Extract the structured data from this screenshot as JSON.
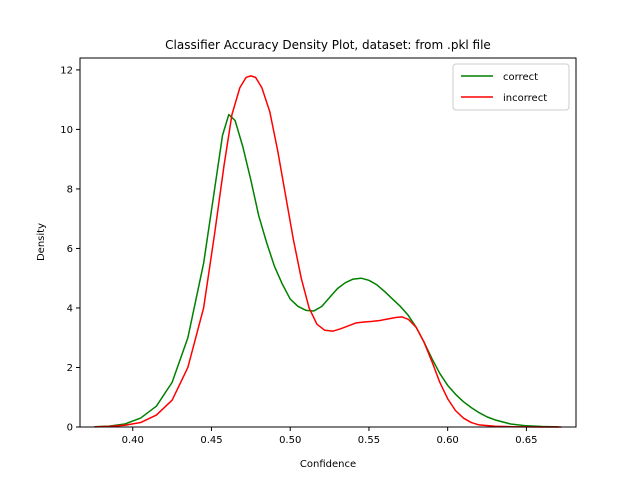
{
  "chart_data": {
    "type": "line",
    "title": "Classifier Accuracy Density Plot, dataset: from .pkl file",
    "xlabel": "Confidence",
    "ylabel": "Density",
    "xlim": [
      0.3665,
      0.6815
    ],
    "ylim": [
      0,
      12.4
    ],
    "x_ticks": [
      "0.40",
      "0.45",
      "0.50",
      "0.55",
      "0.60",
      "0.65"
    ],
    "y_ticks": [
      "0",
      "2",
      "4",
      "6",
      "8",
      "10",
      "12"
    ],
    "legend_position": "top-right",
    "grid": false,
    "series": [
      {
        "name": "correct",
        "color": "#008000",
        "points": [
          [
            0.376,
            0.01
          ],
          [
            0.385,
            0.03
          ],
          [
            0.395,
            0.1
          ],
          [
            0.405,
            0.3
          ],
          [
            0.415,
            0.7
          ],
          [
            0.425,
            1.5
          ],
          [
            0.435,
            3.0
          ],
          [
            0.445,
            5.5
          ],
          [
            0.452,
            8.0
          ],
          [
            0.457,
            9.8
          ],
          [
            0.461,
            10.5
          ],
          [
            0.465,
            10.3
          ],
          [
            0.47,
            9.4
          ],
          [
            0.475,
            8.3
          ],
          [
            0.48,
            7.1
          ],
          [
            0.485,
            6.2
          ],
          [
            0.49,
            5.4
          ],
          [
            0.495,
            4.8
          ],
          [
            0.5,
            4.3
          ],
          [
            0.505,
            4.05
          ],
          [
            0.51,
            3.92
          ],
          [
            0.515,
            3.9
          ],
          [
            0.52,
            4.05
          ],
          [
            0.525,
            4.35
          ],
          [
            0.53,
            4.65
          ],
          [
            0.535,
            4.85
          ],
          [
            0.54,
            4.97
          ],
          [
            0.545,
            5.0
          ],
          [
            0.55,
            4.93
          ],
          [
            0.555,
            4.78
          ],
          [
            0.56,
            4.55
          ],
          [
            0.565,
            4.3
          ],
          [
            0.57,
            4.05
          ],
          [
            0.575,
            3.75
          ],
          [
            0.58,
            3.35
          ],
          [
            0.585,
            2.85
          ],
          [
            0.59,
            2.3
          ],
          [
            0.595,
            1.8
          ],
          [
            0.6,
            1.4
          ],
          [
            0.605,
            1.1
          ],
          [
            0.61,
            0.85
          ],
          [
            0.615,
            0.65
          ],
          [
            0.62,
            0.48
          ],
          [
            0.625,
            0.34
          ],
          [
            0.63,
            0.24
          ],
          [
            0.64,
            0.1
          ],
          [
            0.65,
            0.04
          ],
          [
            0.66,
            0.015
          ],
          [
            0.67,
            0.005
          ]
        ]
      },
      {
        "name": "incorrect",
        "color": "#ff0000",
        "points": [
          [
            0.376,
            0.005
          ],
          [
            0.385,
            0.02
          ],
          [
            0.395,
            0.06
          ],
          [
            0.405,
            0.15
          ],
          [
            0.415,
            0.4
          ],
          [
            0.425,
            0.9
          ],
          [
            0.435,
            2.0
          ],
          [
            0.445,
            4.0
          ],
          [
            0.452,
            6.5
          ],
          [
            0.458,
            8.8
          ],
          [
            0.463,
            10.5
          ],
          [
            0.468,
            11.4
          ],
          [
            0.472,
            11.75
          ],
          [
            0.475,
            11.8
          ],
          [
            0.478,
            11.75
          ],
          [
            0.482,
            11.4
          ],
          [
            0.487,
            10.6
          ],
          [
            0.492,
            9.3
          ],
          [
            0.497,
            7.8
          ],
          [
            0.502,
            6.3
          ],
          [
            0.507,
            5.0
          ],
          [
            0.512,
            4.0
          ],
          [
            0.517,
            3.45
          ],
          [
            0.522,
            3.25
          ],
          [
            0.527,
            3.22
          ],
          [
            0.532,
            3.3
          ],
          [
            0.537,
            3.4
          ],
          [
            0.542,
            3.5
          ],
          [
            0.547,
            3.53
          ],
          [
            0.552,
            3.55
          ],
          [
            0.557,
            3.58
          ],
          [
            0.562,
            3.63
          ],
          [
            0.567,
            3.68
          ],
          [
            0.571,
            3.7
          ],
          [
            0.575,
            3.62
          ],
          [
            0.58,
            3.35
          ],
          [
            0.585,
            2.85
          ],
          [
            0.59,
            2.2
          ],
          [
            0.595,
            1.5
          ],
          [
            0.6,
            0.95
          ],
          [
            0.605,
            0.55
          ],
          [
            0.61,
            0.3
          ],
          [
            0.615,
            0.15
          ],
          [
            0.62,
            0.07
          ],
          [
            0.63,
            0.025
          ],
          [
            0.64,
            0.01
          ],
          [
            0.65,
            0.004
          ],
          [
            0.66,
            0.002
          ],
          [
            0.672,
            0.001
          ]
        ]
      }
    ]
  }
}
